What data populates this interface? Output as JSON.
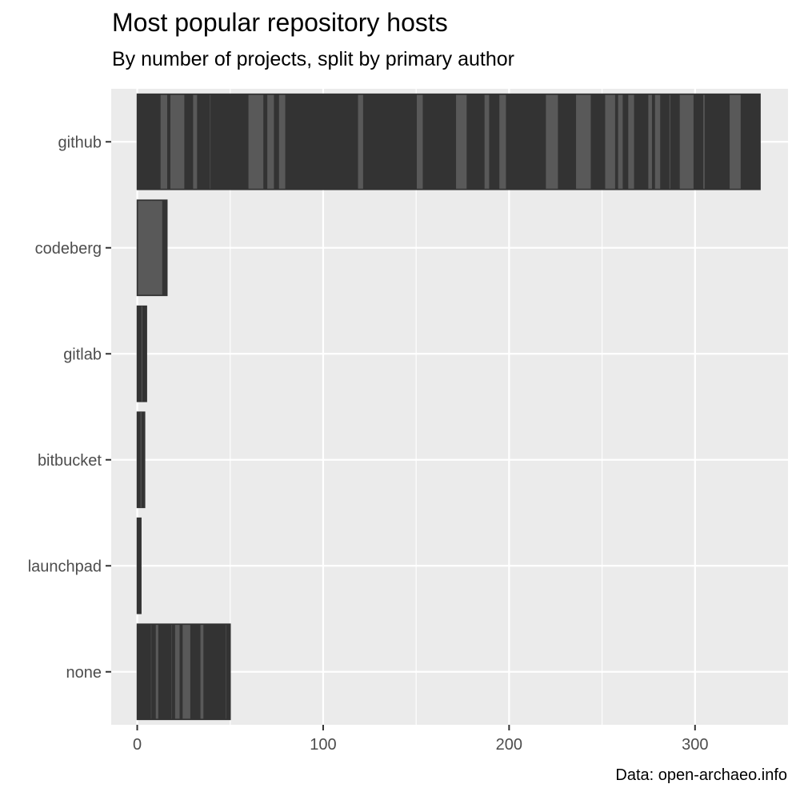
{
  "chart_data": {
    "type": "bar",
    "orientation": "horizontal",
    "stacked": true,
    "title": "Most popular repository hosts",
    "subtitle": "By number of projects, split by primary author",
    "caption": "Data: open-archaeo.info",
    "xlabel": "",
    "ylabel": "",
    "categories": [
      "github",
      "codeberg",
      "gitlab",
      "bitbucket",
      "launchpad",
      "none"
    ],
    "values": [
      335,
      16,
      5,
      4,
      2,
      50
    ],
    "xlim": [
      -14,
      350
    ],
    "xticks": [
      0,
      100,
      200,
      300
    ],
    "grid": true,
    "legend": "none",
    "colors": {
      "panel": "#ebebeb",
      "grid": "#ffffff",
      "bar_dark": "#333333",
      "bar_light": "#595959",
      "tick_text": "#4d4d4d"
    }
  }
}
